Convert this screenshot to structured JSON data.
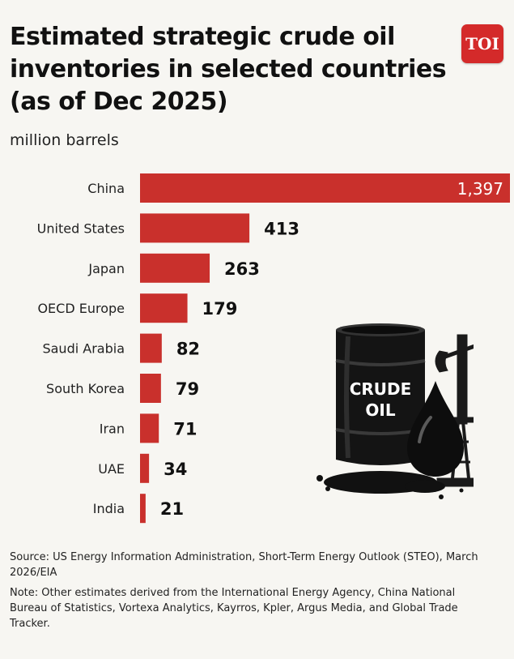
{
  "header": {
    "title": "Estimated strategic crude oil inventories in selected countries (as of Dec 2025)",
    "unit": "million barrels",
    "logo_text": "TOI"
  },
  "illustration": {
    "barrel_label_line1": "CRUDE",
    "barrel_label_line2": "OIL"
  },
  "chart_data": {
    "type": "bar",
    "orientation": "horizontal",
    "title": "Estimated strategic crude oil inventories in selected countries (as of Dec 2025)",
    "ylabel": "million barrels",
    "categories": [
      "China",
      "United States",
      "Japan",
      "OECD Europe",
      "Saudi Arabia",
      "South Korea",
      "Iran",
      "UAE",
      "India"
    ],
    "values": [
      1397,
      413,
      263,
      179,
      82,
      79,
      71,
      34,
      21
    ],
    "value_labels": [
      "1,397",
      "413",
      "263",
      "179",
      "82",
      "79",
      "71",
      "34",
      "21"
    ],
    "bar_color": "#c9302c",
    "grid": false
  },
  "footer": {
    "source": "Source: US Energy Information Administration, Short-Term Energy Outlook (STEO), March 2026/EIA",
    "note": "Note: Other estimates derived from the International Energy Agency, China National Bureau of Statistics, Vortexa Analytics, Kayrros, Kpler, Argus Media, and Global Trade Tracker."
  }
}
